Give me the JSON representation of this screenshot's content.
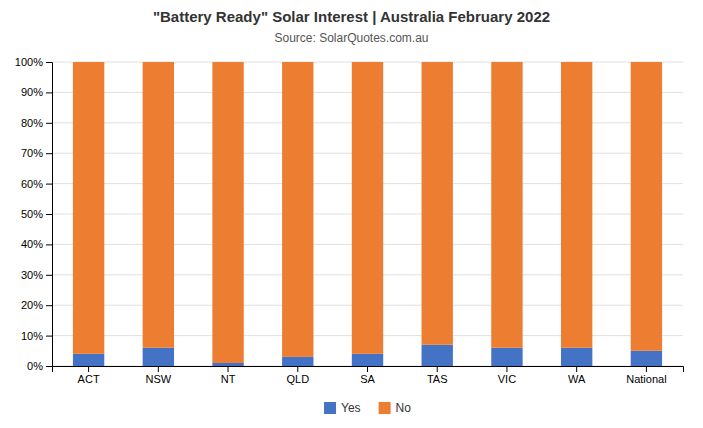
{
  "chart_data": {
    "type": "bar",
    "stacked": true,
    "title": "\"Battery Ready\" Solar Interest | Australia February 2022",
    "subtitle": "Source: SolarQuotes.com.au",
    "categories": [
      "ACT",
      "NSW",
      "NT",
      "QLD",
      "SA",
      "TAS",
      "VIC",
      "WA",
      "National"
    ],
    "series": [
      {
        "name": "Yes",
        "color": "#4472C4",
        "values": [
          4,
          6,
          1,
          3,
          4,
          7,
          6,
          6,
          5
        ]
      },
      {
        "name": "No",
        "color": "#ED7D31",
        "values": [
          96,
          94,
          99,
          97,
          96,
          93,
          94,
          94,
          95
        ]
      }
    ],
    "ylim": [
      0,
      100
    ],
    "yticks": [
      {
        "value": 0,
        "label": "0%"
      },
      {
        "value": 10,
        "label": "10%"
      },
      {
        "value": 20,
        "label": "20%"
      },
      {
        "value": 30,
        "label": "30%"
      },
      {
        "value": 40,
        "label": "40%"
      },
      {
        "value": 50,
        "label": "50%"
      },
      {
        "value": 60,
        "label": "60%"
      },
      {
        "value": 70,
        "label": "70%"
      },
      {
        "value": 80,
        "label": "80%"
      },
      {
        "value": 90,
        "label": "90%"
      },
      {
        "value": 100,
        "label": "100%"
      }
    ],
    "grid": true,
    "legend": "bottom"
  }
}
